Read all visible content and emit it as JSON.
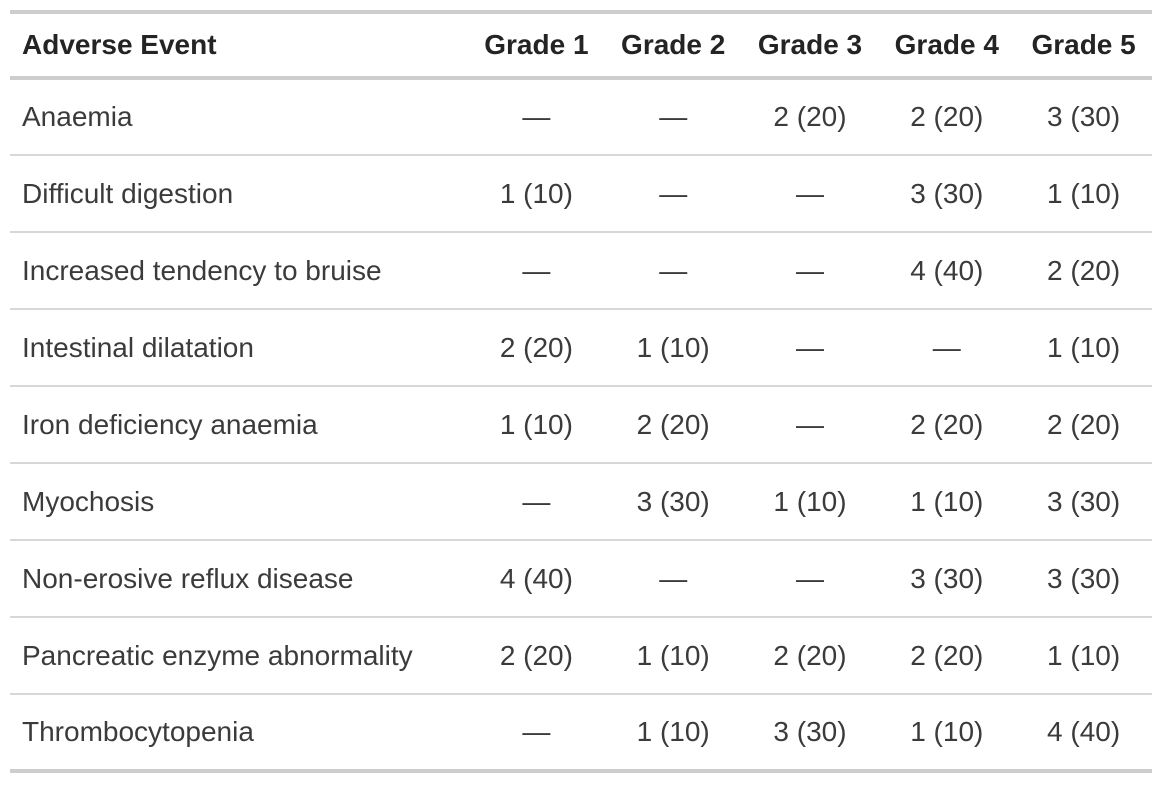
{
  "table": {
    "columns": [
      "Adverse Event",
      "Grade 1",
      "Grade 2",
      "Grade 3",
      "Grade 4",
      "Grade 5"
    ],
    "empty_marker": "—",
    "rows": [
      {
        "event": "Anaemia",
        "values": [
          "—",
          "—",
          "2 (20)",
          "2 (20)",
          "3 (30)"
        ]
      },
      {
        "event": "Difficult digestion",
        "values": [
          "1 (10)",
          "—",
          "—",
          "3 (30)",
          "1 (10)"
        ]
      },
      {
        "event": "Increased tendency to bruise",
        "values": [
          "—",
          "—",
          "—",
          "4 (40)",
          "2 (20)"
        ]
      },
      {
        "event": "Intestinal dilatation",
        "values": [
          "2 (20)",
          "1 (10)",
          "—",
          "—",
          "1 (10)"
        ]
      },
      {
        "event": "Iron deficiency anaemia",
        "values": [
          "1 (10)",
          "2 (20)",
          "—",
          "2 (20)",
          "2 (20)"
        ]
      },
      {
        "event": "Myochosis",
        "values": [
          "—",
          "3 (30)",
          "1 (10)",
          "1 (10)",
          "3 (30)"
        ]
      },
      {
        "event": "Non-erosive reflux disease",
        "values": [
          "4 (40)",
          "—",
          "—",
          "3 (30)",
          "3 (30)"
        ]
      },
      {
        "event": "Pancreatic enzyme abnormality",
        "values": [
          "2 (20)",
          "1 (10)",
          "2 (20)",
          "2 (20)",
          "1 (10)"
        ]
      },
      {
        "event": "Thrombocytopenia",
        "values": [
          "—",
          "1 (10)",
          "3 (30)",
          "1 (10)",
          "4 (40)"
        ]
      }
    ]
  },
  "colors": {
    "border_strong": "#cdcdcd",
    "border_light": "#d7d7d7",
    "header_text": "#242424",
    "body_text": "#3b3b3b",
    "background": "#ffffff"
  }
}
